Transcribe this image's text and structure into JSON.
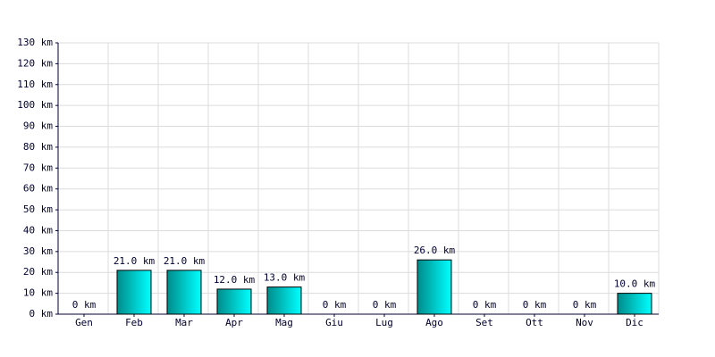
{
  "chart_data": {
    "type": "bar",
    "categories": [
      "Gen",
      "Feb",
      "Mar",
      "Apr",
      "Mag",
      "Giu",
      "Lug",
      "Ago",
      "Set",
      "Ott",
      "Nov",
      "Dic"
    ],
    "values": [
      0,
      21,
      21,
      12,
      13,
      0,
      0,
      26,
      0,
      0,
      0,
      10
    ],
    "value_labels": [
      "0 km",
      "21.0 km",
      "21.0 km",
      "12.0 km",
      "13.0 km",
      "0 km",
      "0 km",
      "26.0 km",
      "0 km",
      "0 km",
      "0 km",
      "10.0 km"
    ],
    "color": "#00ffff",
    "ylim": [
      0,
      130
    ],
    "yticks": [
      {
        "value": 0,
        "label": "0 km"
      },
      {
        "value": 10,
        "label": "10 km"
      },
      {
        "value": 20,
        "label": "20 km"
      },
      {
        "value": 30,
        "label": "30 km"
      },
      {
        "value": 40,
        "label": "40 km"
      },
      {
        "value": 50,
        "label": "50 km"
      },
      {
        "value": 60,
        "label": "60 km"
      },
      {
        "value": 70,
        "label": "70 km"
      },
      {
        "value": 80,
        "label": "80 km"
      },
      {
        "value": 90,
        "label": "90 km"
      },
      {
        "value": 100,
        "label": "100 km"
      },
      {
        "value": 110,
        "label": "110 km"
      },
      {
        "value": 120,
        "label": "120 km"
      },
      {
        "value": 130,
        "label": "130 km"
      }
    ],
    "grid": true
  }
}
